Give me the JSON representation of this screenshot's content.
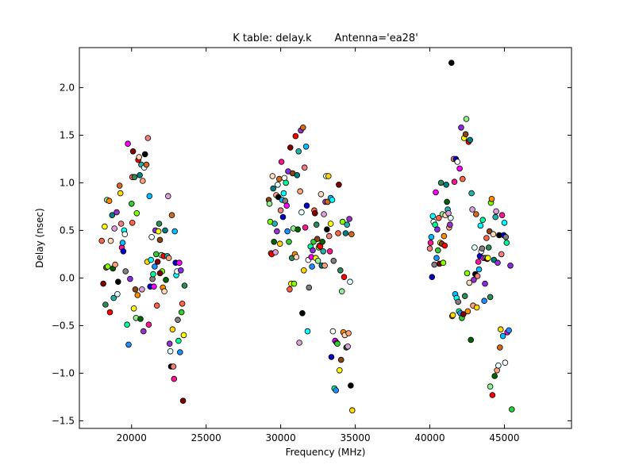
{
  "chart_data": {
    "type": "scatter",
    "title": "K table: delay.k       Antenna='ea28'",
    "xlabel": "Frequency (MHz)",
    "ylabel": "Delay (nsec)",
    "xlim": [
      16500,
      49500
    ],
    "ylim": [
      -1.58,
      2.42
    ],
    "xticks": [
      20000,
      25000,
      30000,
      35000,
      40000,
      45000
    ],
    "xtick_labels": [
      "20000",
      "25000",
      "30000",
      "35000",
      "40000",
      "45000"
    ],
    "yticks": [
      -1.5,
      -1.0,
      -0.5,
      0.0,
      0.5,
      1.0,
      1.5,
      2.0
    ],
    "ytick_labels": [
      "−1.5",
      "−1.0",
      "−0.5",
      "0.0",
      "0.5",
      "1.0",
      "1.5",
      "2.0"
    ],
    "grid": false,
    "legend": "none",
    "palette": [
      "#ff6347",
      "#0000cd",
      "#ffa07a",
      "#90ee90",
      "#ff00ff",
      "#ffd700",
      "#008080",
      "#800000",
      "#00ffff",
      "#9932cc",
      "#7fff00",
      "#1e90ff",
      "#f08080",
      "#006400",
      "#ffff00",
      "#ffffff",
      "#e0ffff",
      "#ff8c00",
      "#8a2be2",
      "#ff1493",
      "#20b2aa",
      "#2e8b57",
      "#808080",
      "#000000",
      "#ff0000",
      "#32cd32",
      "#00bfff",
      "#dda0dd",
      "#8b4513",
      "#00fa9a",
      "#d2691e",
      "#ffdab9"
    ],
    "points": [
      {
        "x": 18000,
        "y": 0.39
      },
      {
        "x": 18100,
        "y": -0.06
      },
      {
        "x": 18200,
        "y": 0.54
      },
      {
        "x": 18250,
        "y": -0.28
      },
      {
        "x": 18300,
        "y": 0.11
      },
      {
        "x": 18350,
        "y": 0.82
      },
      {
        "x": 18400,
        "y": 0.12
      },
      {
        "x": 18500,
        "y": 0.81
      },
      {
        "x": 18550,
        "y": -0.36
      },
      {
        "x": 18600,
        "y": 0.39
      },
      {
        "x": 18700,
        "y": 0.66
      },
      {
        "x": 18750,
        "y": 0.1
      },
      {
        "x": 18800,
        "y": -0.21
      },
      {
        "x": 18850,
        "y": 0.52
      },
      {
        "x": 18900,
        "y": 0.14
      },
      {
        "x": 19000,
        "y": 0.69
      },
      {
        "x": 19050,
        "y": -0.17
      },
      {
        "x": 19100,
        "y": -0.04
      },
      {
        "x": 19200,
        "y": 0.97
      },
      {
        "x": 19250,
        "y": 0.89
      },
      {
        "x": 19300,
        "y": 0.57
      },
      {
        "x": 19350,
        "y": 0.32
      },
      {
        "x": 19400,
        "y": 0.37
      },
      {
        "x": 19450,
        "y": 0.28
      },
      {
        "x": 19500,
        "y": 0.5
      },
      {
        "x": 19550,
        "y": 0.46
      },
      {
        "x": 19600,
        "y": 0.07
      },
      {
        "x": 19700,
        "y": -0.49
      },
      {
        "x": 19750,
        "y": 1.41
      },
      {
        "x": 19800,
        "y": -0.7
      },
      {
        "x": 19900,
        "y": -0.01
      },
      {
        "x": 20000,
        "y": 0.78
      },
      {
        "x": 20050,
        "y": 1.06
      },
      {
        "x": 20100,
        "y": 1.33
      },
      {
        "x": 20150,
        "y": -0.32
      },
      {
        "x": 20200,
        "y": 1.06
      },
      {
        "x": 20250,
        "y": -0.12
      },
      {
        "x": 20300,
        "y": -0.42
      },
      {
        "x": 20350,
        "y": 0.68
      },
      {
        "x": 20400,
        "y": -0.18
      },
      {
        "x": 20450,
        "y": 1.24
      },
      {
        "x": 20500,
        "y": 1.27
      },
      {
        "x": 20550,
        "y": 1.08
      },
      {
        "x": 20600,
        "y": -0.43
      },
      {
        "x": 20650,
        "y": 1.19
      },
      {
        "x": 20700,
        "y": -0.12
      },
      {
        "x": 20750,
        "y": 1.02
      },
      {
        "x": 20800,
        "y": -0.56
      },
      {
        "x": 20850,
        "y": 1.16
      },
      {
        "x": 20900,
        "y": 1.3
      },
      {
        "x": 21000,
        "y": 1.19
      },
      {
        "x": 21050,
        "y": 0.17
      },
      {
        "x": 21100,
        "y": 1.47
      },
      {
        "x": 21150,
        "y": -0.49
      },
      {
        "x": 21200,
        "y": 0.86
      },
      {
        "x": 21250,
        "y": -0.09
      },
      {
        "x": 21300,
        "y": 0.19
      },
      {
        "x": 21350,
        "y": 0.43
      },
      {
        "x": 21400,
        "y": -0.01
      },
      {
        "x": 21450,
        "y": 0.04
      },
      {
        "x": 21500,
        "y": -0.09
      },
      {
        "x": 21550,
        "y": 0.12
      },
      {
        "x": 21600,
        "y": 0.5
      },
      {
        "x": 21650,
        "y": 0.25
      },
      {
        "x": 21700,
        "y": -0.29
      },
      {
        "x": 21750,
        "y": 0.17
      },
      {
        "x": 21800,
        "y": 0.49
      },
      {
        "x": 21850,
        "y": 0.57
      },
      {
        "x": 21900,
        "y": 0.4
      },
      {
        "x": 22000,
        "y": 0.24
      },
      {
        "x": 22050,
        "y": 0.07
      },
      {
        "x": 22100,
        "y": -0.1
      },
      {
        "x": 22150,
        "y": 0.23
      },
      {
        "x": 22200,
        "y": -0.14
      },
      {
        "x": 22250,
        "y": 0.5
      },
      {
        "x": 22300,
        "y": -0.02
      },
      {
        "x": 22400,
        "y": 0.23
      },
      {
        "x": 22450,
        "y": 0.86
      },
      {
        "x": 22500,
        "y": 0.21
      },
      {
        "x": 22550,
        "y": -0.69
      },
      {
        "x": 22600,
        "y": -0.77
      },
      {
        "x": 22650,
        "y": -0.93
      },
      {
        "x": 22700,
        "y": 0.66
      },
      {
        "x": 22750,
        "y": -0.54
      },
      {
        "x": 22800,
        "y": -0.93
      },
      {
        "x": 22850,
        "y": -1.06
      },
      {
        "x": 22900,
        "y": 0.49
      },
      {
        "x": 22950,
        "y": 0.16
      },
      {
        "x": 23000,
        "y": 0.03
      },
      {
        "x": 23050,
        "y": 0.07
      },
      {
        "x": 23100,
        "y": -0.44
      },
      {
        "x": 23150,
        "y": -0.66
      },
      {
        "x": 23200,
        "y": 0.16
      },
      {
        "x": 23250,
        "y": -0.78
      },
      {
        "x": 23300,
        "y": 0.08
      },
      {
        "x": 23350,
        "y": -0.36
      },
      {
        "x": 23400,
        "y": -0.27
      },
      {
        "x": 23450,
        "y": -1.29
      },
      {
        "x": 23500,
        "y": -0.6
      },
      {
        "x": 23550,
        "y": -0.08
      },
      {
        "x": 29200,
        "y": 0.82
      },
      {
        "x": 29250,
        "y": 0.78
      },
      {
        "x": 29300,
        "y": 0.59
      },
      {
        "x": 29350,
        "y": 0.26
      },
      {
        "x": 29400,
        "y": 0.25
      },
      {
        "x": 29450,
        "y": 1.07
      },
      {
        "x": 29500,
        "y": 0.94
      },
      {
        "x": 29550,
        "y": 0.38
      },
      {
        "x": 29600,
        "y": 0.57
      },
      {
        "x": 29650,
        "y": 0.27
      },
      {
        "x": 29700,
        "y": 0.87
      },
      {
        "x": 29750,
        "y": 0.49
      },
      {
        "x": 29800,
        "y": 0.98
      },
      {
        "x": 29850,
        "y": 0.85
      },
      {
        "x": 29900,
        "y": 1.04
      },
      {
        "x": 29950,
        "y": 0.36
      },
      {
        "x": 30000,
        "y": 0.71
      },
      {
        "x": 30050,
        "y": 1.22
      },
      {
        "x": 30100,
        "y": 0.82
      },
      {
        "x": 30150,
        "y": 0.64
      },
      {
        "x": 30200,
        "y": 0.89
      },
      {
        "x": 30250,
        "y": 1.05
      },
      {
        "x": 30300,
        "y": 0.81
      },
      {
        "x": 30350,
        "y": 1.0
      },
      {
        "x": 30400,
        "y": 0.76
      },
      {
        "x": 30450,
        "y": 0.49
      },
      {
        "x": 30500,
        "y": 1.12
      },
      {
        "x": 30550,
        "y": 0.38
      },
      {
        "x": 30600,
        "y": -0.12
      },
      {
        "x": 30650,
        "y": 1.37
      },
      {
        "x": 30700,
        "y": -0.06
      },
      {
        "x": 30750,
        "y": 0.21
      },
      {
        "x": 30800,
        "y": 1.1
      },
      {
        "x": 30850,
        "y": 0.52
      },
      {
        "x": 30900,
        "y": -0.06
      },
      {
        "x": 30950,
        "y": 0.25
      },
      {
        "x": 31000,
        "y": 1.49
      },
      {
        "x": 31050,
        "y": 0.22
      },
      {
        "x": 31100,
        "y": 1.08
      },
      {
        "x": 31150,
        "y": 0.51
      },
      {
        "x": 31200,
        "y": 1.33
      },
      {
        "x": 31250,
        "y": -0.68
      },
      {
        "x": 31300,
        "y": 0.91
      },
      {
        "x": 31350,
        "y": 1.55
      },
      {
        "x": 31400,
        "y": 0.69
      },
      {
        "x": 31450,
        "y": -0.37
      },
      {
        "x": 31500,
        "y": 1.58
      },
      {
        "x": 31550,
        "y": 0.08
      },
      {
        "x": 31600,
        "y": 1.16
      },
      {
        "x": 31650,
        "y": 0.53
      },
      {
        "x": 31700,
        "y": 1.38
      },
      {
        "x": 31750,
        "y": 0.76
      },
      {
        "x": 31800,
        "y": -0.56
      },
      {
        "x": 31850,
        "y": 0.19
      },
      {
        "x": 31900,
        "y": -0.1
      },
      {
        "x": 32000,
        "y": 0.33
      },
      {
        "x": 32050,
        "y": 0.22
      },
      {
        "x": 32100,
        "y": 0.12
      },
      {
        "x": 32150,
        "y": 0.29
      },
      {
        "x": 32200,
        "y": 0.38
      },
      {
        "x": 32250,
        "y": 0.71
      },
      {
        "x": 32300,
        "y": 0.68
      },
      {
        "x": 32350,
        "y": 0.21
      },
      {
        "x": 32400,
        "y": 0.56
      },
      {
        "x": 32450,
        "y": 0.41
      },
      {
        "x": 32500,
        "y": 0.18
      },
      {
        "x": 32550,
        "y": 0.32
      },
      {
        "x": 32600,
        "y": 0.34
      },
      {
        "x": 32650,
        "y": 0.33
      },
      {
        "x": 32700,
        "y": 0.88
      },
      {
        "x": 32750,
        "y": 0.13
      },
      {
        "x": 32800,
        "y": 0.38
      },
      {
        "x": 32850,
        "y": 0.28
      },
      {
        "x": 32900,
        "y": 0.67
      },
      {
        "x": 32950,
        "y": 0.13
      },
      {
        "x": 33000,
        "y": 0.8
      },
      {
        "x": 33050,
        "y": 1.07
      },
      {
        "x": 33100,
        "y": 0.51
      },
      {
        "x": 33150,
        "y": 0.8
      },
      {
        "x": 33200,
        "y": 1.07
      },
      {
        "x": 33250,
        "y": 0.44
      },
      {
        "x": 33300,
        "y": 0.28
      },
      {
        "x": 33350,
        "y": 0.84
      },
      {
        "x": 33400,
        "y": -0.83
      },
      {
        "x": 33450,
        "y": 0.82
      },
      {
        "x": 33500,
        "y": -0.56
      },
      {
        "x": 33550,
        "y": 0.18
      },
      {
        "x": 33600,
        "y": -1.16
      },
      {
        "x": 33650,
        "y": -0.66
      },
      {
        "x": 33700,
        "y": -1.18
      },
      {
        "x": 33750,
        "y": -0.68
      },
      {
        "x": 33800,
        "y": -0.69
      },
      {
        "x": 33850,
        "y": 0.47
      },
      {
        "x": 33900,
        "y": 0.98
      },
      {
        "x": 33950,
        "y": -0.97
      },
      {
        "x": 34000,
        "y": 0.08
      },
      {
        "x": 34050,
        "y": -0.86
      },
      {
        "x": 34100,
        "y": -0.14
      },
      {
        "x": 34150,
        "y": 0.59
      },
      {
        "x": 34200,
        "y": -0.57
      },
      {
        "x": 34250,
        "y": 0.01
      },
      {
        "x": 34300,
        "y": -0.6
      },
      {
        "x": 34350,
        "y": 0.47
      },
      {
        "x": 34400,
        "y": -0.73
      },
      {
        "x": 34450,
        "y": 0.56
      },
      {
        "x": 34500,
        "y": -0.72
      },
      {
        "x": 34550,
        "y": -0.58
      },
      {
        "x": 34600,
        "y": 0.62
      },
      {
        "x": 34650,
        "y": -0.04
      },
      {
        "x": 34700,
        "y": -1.13
      },
      {
        "x": 34750,
        "y": 0.46
      },
      {
        "x": 34800,
        "y": -1.39
      },
      {
        "x": 40000,
        "y": 0.31
      },
      {
        "x": 40050,
        "y": 0.37
      },
      {
        "x": 40100,
        "y": 0.43
      },
      {
        "x": 40150,
        "y": 0.01
      },
      {
        "x": 40200,
        "y": 0.65
      },
      {
        "x": 40250,
        "y": 0.59
      },
      {
        "x": 40300,
        "y": 0.14
      },
      {
        "x": 40350,
        "y": 0.56
      },
      {
        "x": 40400,
        "y": 0.9
      },
      {
        "x": 40450,
        "y": 0.21
      },
      {
        "x": 40500,
        "y": 0.51
      },
      {
        "x": 40550,
        "y": 0.29
      },
      {
        "x": 40600,
        "y": 0.63
      },
      {
        "x": 40650,
        "y": 0.15
      },
      {
        "x": 40700,
        "y": 0.37
      },
      {
        "x": 40750,
        "y": 1.0
      },
      {
        "x": 40800,
        "y": 0.36
      },
      {
        "x": 40850,
        "y": 0.67
      },
      {
        "x": 40900,
        "y": 0.16
      },
      {
        "x": 40950,
        "y": 0.44
      },
      {
        "x": 41000,
        "y": 0.34
      },
      {
        "x": 41050,
        "y": 0.66
      },
      {
        "x": 41100,
        "y": 0.98
      },
      {
        "x": 41150,
        "y": 0.8
      },
      {
        "x": 41200,
        "y": 0.72
      },
      {
        "x": 41250,
        "y": 0.68
      },
      {
        "x": 41300,
        "y": 0.53
      },
      {
        "x": 41350,
        "y": 0.56
      },
      {
        "x": 41400,
        "y": 0.63
      },
      {
        "x": 41450,
        "y": 2.26
      },
      {
        "x": 41500,
        "y": -0.4
      },
      {
        "x": 41550,
        "y": -0.39
      },
      {
        "x": 41600,
        "y": 1.25
      },
      {
        "x": 41650,
        "y": 1.01
      },
      {
        "x": 41700,
        "y": -0.17
      },
      {
        "x": 41750,
        "y": 1.25
      },
      {
        "x": 41800,
        "y": -0.21
      },
      {
        "x": 41850,
        "y": 1.22
      },
      {
        "x": 41900,
        "y": -0.25
      },
      {
        "x": 41950,
        "y": -0.35
      },
      {
        "x": 42000,
        "y": 1.15
      },
      {
        "x": 42050,
        "y": -0.37
      },
      {
        "x": 42100,
        "y": 1.58
      },
      {
        "x": 42150,
        "y": -0.42
      },
      {
        "x": 42200,
        "y": 1.04
      },
      {
        "x": 42250,
        "y": -0.38
      },
      {
        "x": 42300,
        "y": 1.47
      },
      {
        "x": 42350,
        "y": -0.19
      },
      {
        "x": 42400,
        "y": 1.51
      },
      {
        "x": 42450,
        "y": 1.67
      },
      {
        "x": 42500,
        "y": 0.05
      },
      {
        "x": 42550,
        "y": -0.35
      },
      {
        "x": 42600,
        "y": 1.43
      },
      {
        "x": 42650,
        "y": -0.05
      },
      {
        "x": 42700,
        "y": 1.45
      },
      {
        "x": 42750,
        "y": -0.65
      },
      {
        "x": 42800,
        "y": 0.89
      },
      {
        "x": 42850,
        "y": 0.72
      },
      {
        "x": 42900,
        "y": -0.29
      },
      {
        "x": 42950,
        "y": -0.02
      },
      {
        "x": 43000,
        "y": 0.32
      },
      {
        "x": 43050,
        "y": 0.04
      },
      {
        "x": 43100,
        "y": 0.67
      },
      {
        "x": 43150,
        "y": -0.31
      },
      {
        "x": 43200,
        "y": 0.02
      },
      {
        "x": 43250,
        "y": 0.17
      },
      {
        "x": 43300,
        "y": 0.09
      },
      {
        "x": 43350,
        "y": 0.23
      },
      {
        "x": 43400,
        "y": 0.55
      },
      {
        "x": 43450,
        "y": 0.28
      },
      {
        "x": 43500,
        "y": 0.31
      },
      {
        "x": 43550,
        "y": 0.61
      },
      {
        "x": 43600,
        "y": 0.21
      },
      {
        "x": 43650,
        "y": -0.24
      },
      {
        "x": 43700,
        "y": -0.06
      },
      {
        "x": 43750,
        "y": 0.21
      },
      {
        "x": 43800,
        "y": 0.42
      },
      {
        "x": 43850,
        "y": 0.2
      },
      {
        "x": 43900,
        "y": 0.21
      },
      {
        "x": 43950,
        "y": 0.32
      },
      {
        "x": 44000,
        "y": 0.49
      },
      {
        "x": 44050,
        "y": -1.14
      },
      {
        "x": 44100,
        "y": 0.79
      },
      {
        "x": 44150,
        "y": 0.83
      },
      {
        "x": 44200,
        "y": -1.23
      },
      {
        "x": 44250,
        "y": 0.46
      },
      {
        "x": 44300,
        "y": 0.19
      },
      {
        "x": 44350,
        "y": -1.03
      },
      {
        "x": 44400,
        "y": 0.64
      },
      {
        "x": 44450,
        "y": 0.7
      },
      {
        "x": 44500,
        "y": -0.97
      },
      {
        "x": 44550,
        "y": 0.16
      },
      {
        "x": 44600,
        "y": -0.92
      },
      {
        "x": 44650,
        "y": 0.45
      },
      {
        "x": 44700,
        "y": -0.73
      },
      {
        "x": 44750,
        "y": -0.54
      },
      {
        "x": 44800,
        "y": 0.25
      },
      {
        "x": 44850,
        "y": 0.66
      },
      {
        "x": 44900,
        "y": -0.61
      },
      {
        "x": 44950,
        "y": 0.45
      },
      {
        "x": 45000,
        "y": 0.58
      },
      {
        "x": 45050,
        "y": -0.89
      },
      {
        "x": 45100,
        "y": 0.43
      },
      {
        "x": 45150,
        "y": 0.37
      },
      {
        "x": 45200,
        "y": -0.57
      },
      {
        "x": 45300,
        "y": -0.55
      },
      {
        "x": 45400,
        "y": 0.13
      },
      {
        "x": 45500,
        "y": -1.38
      },
      {
        "x": 20050,
        "y": 0.58
      },
      {
        "x": 21900,
        "y": 0.05
      },
      {
        "x": 33350,
        "y": 0.57
      },
      {
        "x": 44050,
        "y": -0.2
      }
    ]
  }
}
